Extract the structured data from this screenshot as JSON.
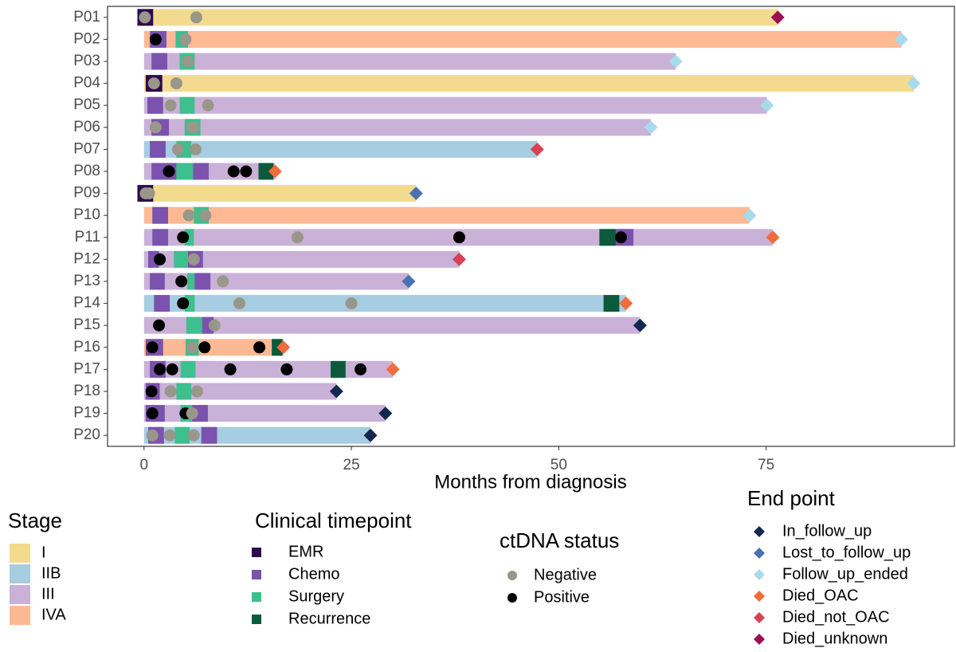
{
  "chart_data": {
    "type": "swimmer",
    "x_label": "Months from diagnosis",
    "xlim": [
      -4.4,
      97.7
    ],
    "xticks": [
      0,
      25,
      50,
      75
    ],
    "categories": [
      "P01",
      "P02",
      "P03",
      "P04",
      "P05",
      "P06",
      "P07",
      "P08",
      "P09",
      "P10",
      "P11",
      "P12",
      "P13",
      "P14",
      "P15",
      "P16",
      "P17",
      "P18",
      "P19",
      "P20"
    ],
    "patients": [
      {
        "stage": "I",
        "start": -0.8,
        "end": 76.4,
        "endpoint": "Died_unknown",
        "events": [
          {
            "type": "EMR",
            "start": -0.8,
            "end": 1.1
          }
        ],
        "ctdna": [
          {
            "month": 0.1,
            "status": "Negative"
          },
          {
            "month": 6.3,
            "status": "Negative"
          }
        ]
      },
      {
        "stage": "IVA",
        "start": 0,
        "end": 91.3,
        "endpoint": "Follow_up_ended",
        "events": [
          {
            "type": "Chemo",
            "start": 0.7,
            "end": 2.7
          },
          {
            "type": "Surgery",
            "start": 3.8,
            "end": 5.3
          }
        ],
        "ctdna": [
          {
            "month": 1.4,
            "status": "Positive"
          },
          {
            "month": 5.0,
            "status": "Negative"
          }
        ]
      },
      {
        "stage": "III",
        "start": 0,
        "end": 64.1,
        "endpoint": "Follow_up_ended",
        "events": [
          {
            "type": "Chemo",
            "start": 0.9,
            "end": 2.8
          },
          {
            "type": "Surgery",
            "start": 4.3,
            "end": 6.1
          }
        ],
        "ctdna": [
          {
            "month": 5.3,
            "status": "Negative"
          }
        ]
      },
      {
        "stage": "I",
        "start": 0,
        "end": 92.8,
        "endpoint": "Follow_up_ended",
        "events": [
          {
            "type": "EMR",
            "start": 0.2,
            "end": 2.2
          }
        ],
        "ctdna": [
          {
            "month": 1.2,
            "status": "Negative"
          },
          {
            "month": 3.9,
            "status": "Negative"
          }
        ]
      },
      {
        "stage": "III",
        "start": 0,
        "end": 75.1,
        "endpoint": "Follow_up_ended",
        "events": [
          {
            "type": "Chemo",
            "start": 0.4,
            "end": 2.3
          },
          {
            "type": "Surgery",
            "start": 4.3,
            "end": 6.1
          }
        ],
        "ctdna": [
          {
            "month": 3.2,
            "status": "Negative"
          },
          {
            "month": 7.7,
            "status": "Negative"
          }
        ]
      },
      {
        "stage": "III",
        "start": 0,
        "end": 61.1,
        "endpoint": "Follow_up_ended",
        "events": [
          {
            "type": "Chemo",
            "start": 0.9,
            "end": 3.0
          },
          {
            "type": "Surgery",
            "start": 4.9,
            "end": 6.8
          }
        ],
        "ctdna": [
          {
            "month": 1.4,
            "status": "Negative"
          },
          {
            "month": 5.8,
            "status": "Negative"
          },
          {
            "month": 6.0,
            "status": "Negative"
          }
        ]
      },
      {
        "stage": "IIB",
        "start": 0,
        "end": 47.4,
        "endpoint": "Died_not_OAC",
        "events": [
          {
            "type": "Chemo",
            "start": 0.7,
            "end": 2.6
          },
          {
            "type": "Surgery",
            "start": 3.9,
            "end": 5.7
          }
        ],
        "ctdna": [
          {
            "month": 4.1,
            "status": "Negative"
          },
          {
            "month": 6.2,
            "status": "Negative"
          }
        ]
      },
      {
        "stage": "III",
        "start": 0,
        "end": 15.8,
        "endpoint": "Died_OAC",
        "events": [
          {
            "type": "Chemo",
            "start": 0.9,
            "end": 3.9
          },
          {
            "type": "Surgery",
            "start": 3.9,
            "end": 5.9
          },
          {
            "type": "Chemo",
            "start": 5.9,
            "end": 7.8
          },
          {
            "type": "Recurrence",
            "start": 13.8,
            "end": 15.6
          }
        ],
        "ctdna": [
          {
            "month": 3.0,
            "status": "Positive"
          },
          {
            "month": 10.8,
            "status": "Positive"
          },
          {
            "month": 12.3,
            "status": "Positive"
          }
        ]
      },
      {
        "stage": "I",
        "start": -0.8,
        "end": 32.8,
        "endpoint": "Lost_to_follow_up",
        "events": [
          {
            "type": "EMR",
            "start": -0.8,
            "end": 1.1
          }
        ],
        "ctdna": [
          {
            "month": 0.2,
            "status": "Negative"
          },
          {
            "month": 0.6,
            "status": "Negative"
          }
        ]
      },
      {
        "stage": "IVA",
        "start": 0,
        "end": 73.0,
        "endpoint": "Follow_up_ended",
        "events": [
          {
            "type": "Chemo",
            "start": 1.0,
            "end": 2.9
          },
          {
            "type": "Surgery",
            "start": 6.0,
            "end": 7.8
          }
        ],
        "ctdna": [
          {
            "month": 5.4,
            "status": "Negative"
          },
          {
            "month": 7.4,
            "status": "Negative"
          }
        ]
      },
      {
        "stage": "III",
        "start": 0,
        "end": 75.8,
        "endpoint": "Died_OAC",
        "events": [
          {
            "type": "Chemo",
            "start": 1.0,
            "end": 2.9
          },
          {
            "type": "Surgery",
            "start": 4.9,
            "end": 6.0
          },
          {
            "type": "Recurrence",
            "start": 54.9,
            "end": 56.9
          },
          {
            "type": "Chemo",
            "start": 56.9,
            "end": 59.0
          }
        ],
        "ctdna": [
          {
            "month": 4.7,
            "status": "Positive"
          },
          {
            "month": 18.5,
            "status": "Negative"
          },
          {
            "month": 38.0,
            "status": "Positive"
          },
          {
            "month": 57.5,
            "status": "Positive"
          }
        ]
      },
      {
        "stage": "III",
        "start": 0,
        "end": 38.0,
        "endpoint": "Died_not_OAC",
        "events": [
          {
            "type": "Chemo",
            "start": 0.5,
            "end": 1.8
          },
          {
            "type": "Surgery",
            "start": 3.6,
            "end": 5.3
          },
          {
            "type": "Chemo",
            "start": 5.3,
            "end": 7.1
          }
        ],
        "ctdna": [
          {
            "month": 1.9,
            "status": "Positive"
          },
          {
            "month": 6.0,
            "status": "Negative"
          }
        ]
      },
      {
        "stage": "III",
        "start": 0,
        "end": 31.9,
        "endpoint": "Lost_to_follow_up",
        "events": [
          {
            "type": "Chemo",
            "start": 0.7,
            "end": 2.5
          },
          {
            "type": "Surgery",
            "start": 5.2,
            "end": 6.1
          },
          {
            "type": "Chemo",
            "start": 6.1,
            "end": 8.0
          }
        ],
        "ctdna": [
          {
            "month": 4.5,
            "status": "Positive"
          },
          {
            "month": 9.5,
            "status": "Negative"
          }
        ]
      },
      {
        "stage": "IIB",
        "start": 0,
        "end": 58.1,
        "endpoint": "Died_OAC",
        "events": [
          {
            "type": "Chemo",
            "start": 1.2,
            "end": 3.1
          },
          {
            "type": "Surgery",
            "start": 4.9,
            "end": 6.1
          },
          {
            "type": "Recurrence",
            "start": 55.4,
            "end": 57.3
          }
        ],
        "ctdna": [
          {
            "month": 4.7,
            "status": "Positive"
          },
          {
            "month": 11.5,
            "status": "Negative"
          },
          {
            "month": 25.0,
            "status": "Negative"
          }
        ]
      },
      {
        "stage": "III",
        "start": 0,
        "end": 59.8,
        "endpoint": "In_follow_up",
        "events": [
          {
            "type": "Surgery",
            "start": 5.1,
            "end": 7.0
          },
          {
            "type": "Chemo",
            "start": 7.0,
            "end": 8.4
          }
        ],
        "ctdna": [
          {
            "month": 1.8,
            "status": "Positive"
          },
          {
            "month": 8.5,
            "status": "Negative"
          }
        ]
      },
      {
        "stage": "IVA",
        "start": 0,
        "end": 16.8,
        "endpoint": "Died_OAC",
        "events": [
          {
            "type": "Chemo",
            "start": 0.2,
            "end": 2.3
          },
          {
            "type": "Surgery",
            "start": 5.0,
            "end": 6.6
          },
          {
            "type": "Recurrence",
            "start": 15.4,
            "end": 16.7
          }
        ],
        "ctdna": [
          {
            "month": 1.0,
            "status": "Positive"
          },
          {
            "month": 5.8,
            "status": "Negative"
          },
          {
            "month": 7.3,
            "status": "Positive"
          },
          {
            "month": 13.9,
            "status": "Positive"
          }
        ]
      },
      {
        "stage": "III",
        "start": 0,
        "end": 30.0,
        "endpoint": "Died_OAC",
        "events": [
          {
            "type": "Chemo",
            "start": 0.7,
            "end": 2.6
          },
          {
            "type": "Surgery",
            "start": 4.4,
            "end": 6.2
          },
          {
            "type": "Recurrence",
            "start": 22.5,
            "end": 24.3
          }
        ],
        "ctdna": [
          {
            "month": 1.9,
            "status": "Positive"
          },
          {
            "month": 3.4,
            "status": "Positive"
          },
          {
            "month": 10.4,
            "status": "Positive"
          },
          {
            "month": 17.2,
            "status": "Positive"
          },
          {
            "month": 26.1,
            "status": "Positive"
          }
        ]
      },
      {
        "stage": "III",
        "start": 0,
        "end": 23.2,
        "endpoint": "In_follow_up",
        "events": [
          {
            "type": "Chemo",
            "start": 0.2,
            "end": 1.9
          },
          {
            "type": "Surgery",
            "start": 3.9,
            "end": 5.7
          }
        ],
        "ctdna": [
          {
            "month": 0.9,
            "status": "Positive"
          },
          {
            "month": 3.2,
            "status": "Negative"
          },
          {
            "month": 6.4,
            "status": "Negative"
          }
        ]
      },
      {
        "stage": "III",
        "start": 0,
        "end": 29.1,
        "endpoint": "In_follow_up",
        "events": [
          {
            "type": "Chemo",
            "start": 0.2,
            "end": 2.5
          },
          {
            "type": "Surgery",
            "start": 4.4,
            "end": 5.8
          },
          {
            "type": "Chemo",
            "start": 5.8,
            "end": 7.7
          }
        ],
        "ctdna": [
          {
            "month": 1.0,
            "status": "Positive"
          },
          {
            "month": 5.0,
            "status": "Positive"
          },
          {
            "month": 5.8,
            "status": "Negative"
          }
        ]
      },
      {
        "stage": "IIB",
        "start": 0,
        "end": 27.3,
        "endpoint": "In_follow_up",
        "events": [
          {
            "type": "Chemo",
            "start": 0.5,
            "end": 2.4
          },
          {
            "type": "Surgery",
            "start": 3.7,
            "end": 5.5
          },
          {
            "type": "Chemo",
            "start": 6.9,
            "end": 8.8
          }
        ],
        "ctdna": [
          {
            "month": 1.0,
            "status": "Negative"
          },
          {
            "month": 3.1,
            "status": "Negative"
          },
          {
            "month": 6.0,
            "status": "Negative"
          }
        ]
      }
    ],
    "legends": {
      "stage": {
        "title": "Stage",
        "items": [
          {
            "name": "I",
            "color": "#f2db8f"
          },
          {
            "name": "IIB",
            "color": "#a6cde1"
          },
          {
            "name": "III",
            "color": "#c9b1d7"
          },
          {
            "name": "IVA",
            "color": "#fdb994"
          }
        ]
      },
      "timepoint": {
        "title": "Clinical timepoint",
        "items": [
          {
            "name": "EMR",
            "color": "#2d0a4f"
          },
          {
            "name": "Chemo",
            "color": "#7b52ae"
          },
          {
            "name": "Surgery",
            "color": "#3dbf8e"
          },
          {
            "name": "Recurrence",
            "color": "#0b5a3c"
          }
        ]
      },
      "ctdna": {
        "title": "ctDNA status",
        "items": [
          {
            "name": "Negative",
            "color": "#99968a"
          },
          {
            "name": "Positive",
            "color": "#000000"
          }
        ]
      },
      "endpoint": {
        "title": "End point",
        "items": [
          {
            "name": "In_follow_up",
            "color": "#13284f"
          },
          {
            "name": "Lost_to_follow_up",
            "color": "#4a72b0"
          },
          {
            "name": "Follow_up_ended",
            "color": "#a8daed"
          },
          {
            "name": "Died_OAC",
            "color": "#f26b3a"
          },
          {
            "name": "Died_not_OAC",
            "color": "#d94155"
          },
          {
            "name": "Died_unknown",
            "color": "#9b1050"
          }
        ]
      }
    }
  }
}
